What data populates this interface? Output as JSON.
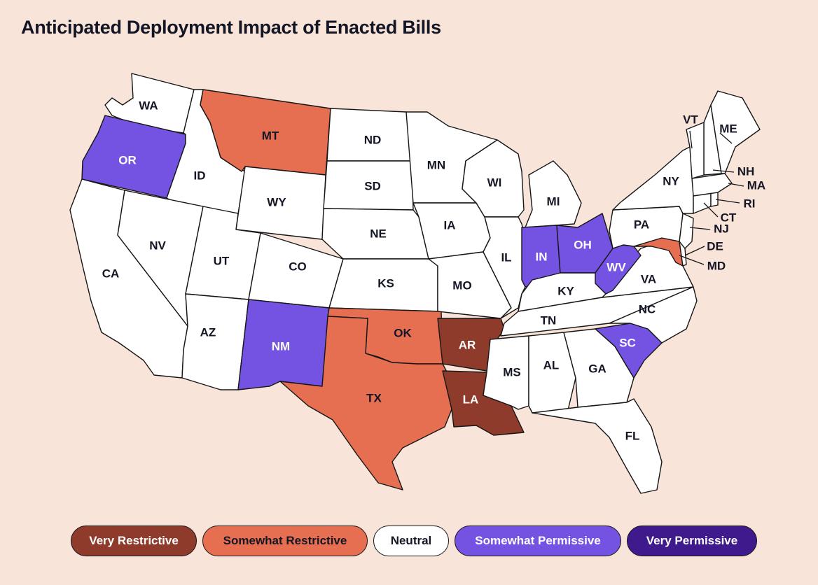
{
  "title": "Anticipated Deployment Impact of Enacted Bills",
  "colors": {
    "very_restrictive": "#8E3B2C",
    "somewhat_restrictive": "#E66F52",
    "neutral": "#FFFFFF",
    "somewhat_permissive": "#7553E2",
    "very_permissive": "#3F1A8C"
  },
  "legend": [
    {
      "key": "very_restrictive",
      "label": "Very Restrictive",
      "text_color": "#FFFFFF"
    },
    {
      "key": "somewhat_restrictive",
      "label": "Somewhat Restrictive",
      "text_color": "#141625"
    },
    {
      "key": "neutral",
      "label": "Neutral",
      "text_color": "#141625"
    },
    {
      "key": "somewhat_permissive",
      "label": "Somewhat Permissive",
      "text_color": "#FFFFFF"
    },
    {
      "key": "very_permissive",
      "label": "Very Permissive",
      "text_color": "#FFFFFF"
    }
  ],
  "states": [
    {
      "code": "WA",
      "category": "neutral"
    },
    {
      "code": "OR",
      "category": "somewhat_permissive"
    },
    {
      "code": "CA",
      "category": "neutral"
    },
    {
      "code": "ID",
      "category": "neutral"
    },
    {
      "code": "NV",
      "category": "neutral"
    },
    {
      "code": "MT",
      "category": "somewhat_restrictive"
    },
    {
      "code": "WY",
      "category": "neutral"
    },
    {
      "code": "UT",
      "category": "neutral"
    },
    {
      "code": "AZ",
      "category": "neutral"
    },
    {
      "code": "CO",
      "category": "neutral"
    },
    {
      "code": "NM",
      "category": "somewhat_permissive"
    },
    {
      "code": "ND",
      "category": "neutral"
    },
    {
      "code": "SD",
      "category": "neutral"
    },
    {
      "code": "NE",
      "category": "neutral"
    },
    {
      "code": "KS",
      "category": "neutral"
    },
    {
      "code": "OK",
      "category": "somewhat_restrictive"
    },
    {
      "code": "TX",
      "category": "somewhat_restrictive"
    },
    {
      "code": "MN",
      "category": "neutral"
    },
    {
      "code": "IA",
      "category": "neutral"
    },
    {
      "code": "MO",
      "category": "neutral"
    },
    {
      "code": "AR",
      "category": "very_restrictive"
    },
    {
      "code": "LA",
      "category": "very_restrictive"
    },
    {
      "code": "WI",
      "category": "neutral"
    },
    {
      "code": "IL",
      "category": "neutral"
    },
    {
      "code": "MI",
      "category": "neutral"
    },
    {
      "code": "IN",
      "category": "somewhat_permissive"
    },
    {
      "code": "OH",
      "category": "somewhat_permissive"
    },
    {
      "code": "KY",
      "category": "neutral"
    },
    {
      "code": "TN",
      "category": "neutral"
    },
    {
      "code": "MS",
      "category": "neutral"
    },
    {
      "code": "AL",
      "category": "neutral"
    },
    {
      "code": "GA",
      "category": "neutral"
    },
    {
      "code": "FL",
      "category": "neutral"
    },
    {
      "code": "SC",
      "category": "somewhat_permissive"
    },
    {
      "code": "NC",
      "category": "neutral"
    },
    {
      "code": "VA",
      "category": "neutral"
    },
    {
      "code": "WV",
      "category": "somewhat_permissive"
    },
    {
      "code": "MD",
      "category": "somewhat_restrictive"
    },
    {
      "code": "DE",
      "category": "neutral"
    },
    {
      "code": "NJ",
      "category": "neutral"
    },
    {
      "code": "PA",
      "category": "neutral"
    },
    {
      "code": "NY",
      "category": "neutral"
    },
    {
      "code": "CT",
      "category": "neutral"
    },
    {
      "code": "RI",
      "category": "neutral"
    },
    {
      "code": "MA",
      "category": "neutral"
    },
    {
      "code": "NH",
      "category": "neutral"
    },
    {
      "code": "VT",
      "category": "neutral"
    },
    {
      "code": "ME",
      "category": "neutral"
    }
  ]
}
